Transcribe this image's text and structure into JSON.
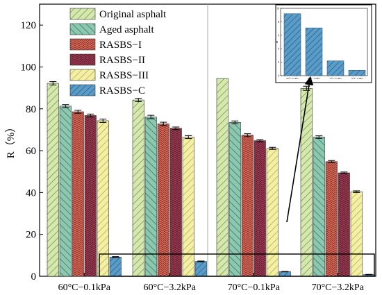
{
  "chart_data": {
    "type": "bar",
    "ylabel": "R（%）",
    "ylim": [
      0,
      130
    ],
    "yticks": [
      0,
      20,
      40,
      60,
      80,
      100,
      120
    ],
    "categories": [
      "60°C−0.1kPa",
      "60°C−3.2kPa",
      "70°C−0.1kPa",
      "70°C−3.2kPa"
    ],
    "legend_position": "top-left",
    "series": [
      {
        "name": "Original asphalt",
        "values": [
          92.2,
          84.2,
          94.5,
          89.8
        ],
        "errors": [
          0.8,
          0.8,
          0,
          1.0
        ],
        "color": "#d6e8b0",
        "hatch_color": "#6b8e3a"
      },
      {
        "name": "Aged asphalt",
        "values": [
          81.3,
          76.1,
          73.5,
          66.5
        ],
        "errors": [
          0.7,
          0.8,
          0.7,
          0.6
        ],
        "color": "#8cc7b0",
        "hatch_color": "#2e6f58"
      },
      {
        "name": "RASBS−I",
        "values": [
          78.6,
          72.8,
          67.4,
          54.8
        ],
        "errors": [
          0.7,
          0.8,
          0.7,
          0.5
        ],
        "color": "#d86e5f",
        "hatch_color": "#8a2f24"
      },
      {
        "name": "RASBS−II",
        "values": [
          76.8,
          70.7,
          64.8,
          49.4
        ],
        "errors": [
          0.7,
          0.6,
          0.5,
          0.4
        ],
        "color": "#9e3e55",
        "hatch_color": "#5a1a2a"
      },
      {
        "name": "RASBS−III",
        "values": [
          74.3,
          66.5,
          61.1,
          40.4
        ],
        "errors": [
          0.8,
          0.7,
          0.5,
          0.4
        ],
        "color": "#f3efa4",
        "hatch_color": "#b0a54a"
      },
      {
        "name": "RASBS−C",
        "values": [
          9.2,
          7.1,
          2.2,
          0.8
        ],
        "errors": [
          0.2,
          0.2,
          0.1,
          0.1
        ],
        "color": "#5a9cc8",
        "hatch_color": "#1f4f77"
      }
    ],
    "inset": {
      "categories": [
        "60°C−0.1kPa",
        "60°C−3.2kPa",
        "70°C−0.1kPa",
        "70°C−3.2kPa"
      ],
      "values": [
        9.2,
        7.1,
        2.2,
        0.8
      ],
      "ylim": [
        0,
        10
      ],
      "yticks": [
        0,
        2,
        4,
        6,
        8,
        10
      ],
      "ylabel": "R",
      "color": "#5a9cc8"
    }
  }
}
